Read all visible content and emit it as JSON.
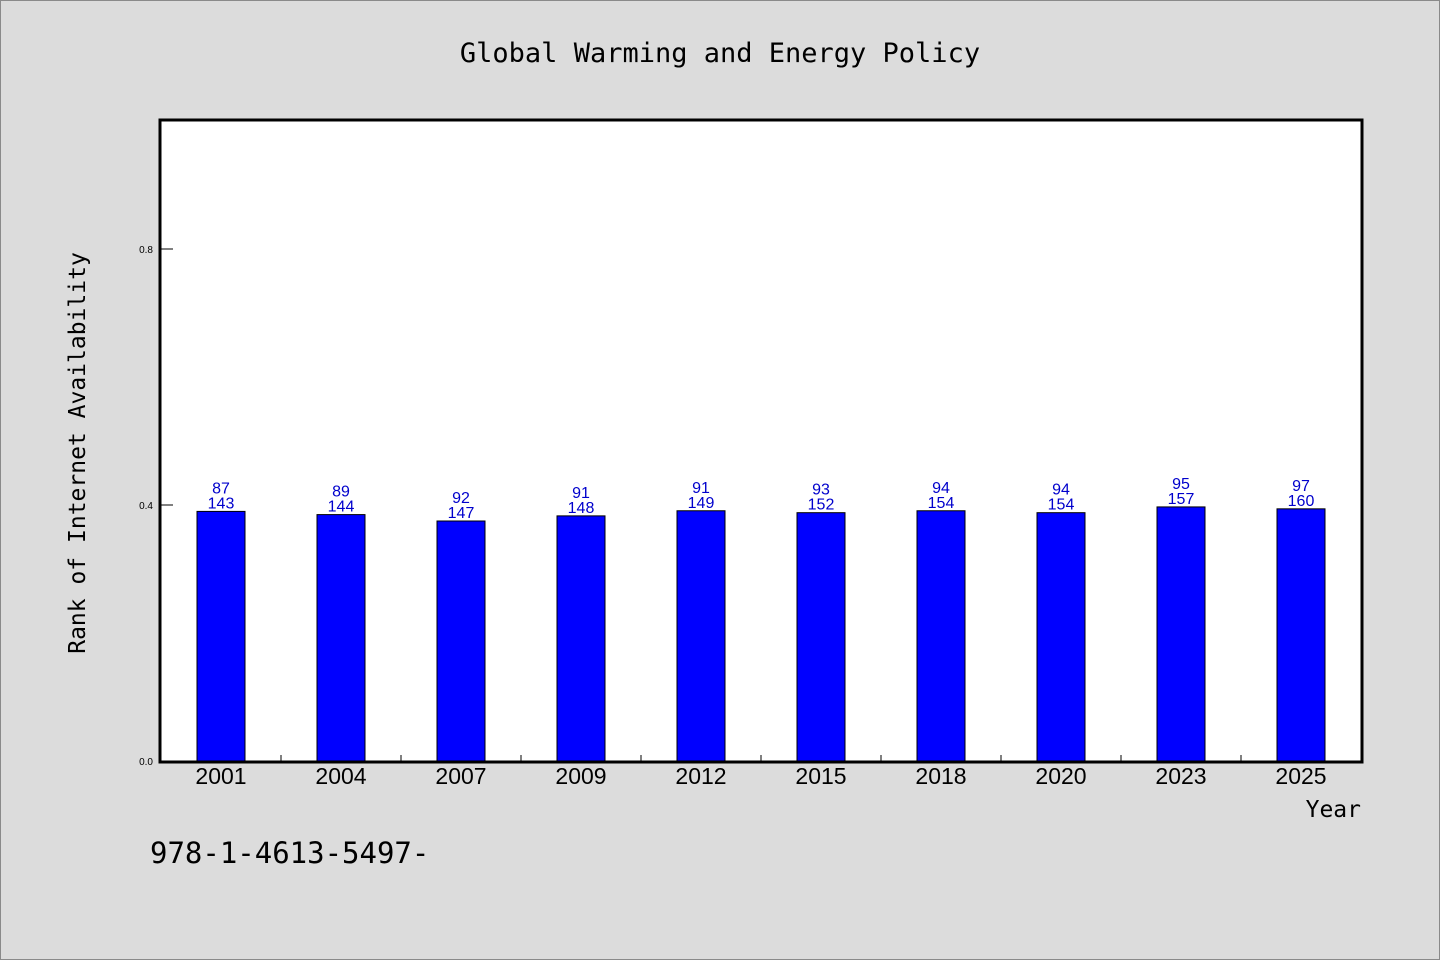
{
  "chart_data": {
    "type": "bar",
    "title": "Global Warming and Energy Policy",
    "xlabel": "Year",
    "ylabel": "Rank of Internet Availability",
    "categories": [
      "2001",
      "2004",
      "2007",
      "2009",
      "2012",
      "2015",
      "2018",
      "2020",
      "2023",
      "2025"
    ],
    "values": [
      0.39,
      0.385,
      0.375,
      0.383,
      0.391,
      0.388,
      0.391,
      0.388,
      0.397,
      0.394
    ],
    "labels_upper": [
      "87",
      "89",
      "92",
      "91",
      "91",
      "93",
      "94",
      "94",
      "95",
      "97"
    ],
    "labels_lower": [
      "143",
      "144",
      "147",
      "148",
      "149",
      "152",
      "154",
      "154",
      "157",
      "160"
    ],
    "ylim": [
      0,
      1.0
    ],
    "yticks": [
      0.0,
      0.4,
      0.8
    ],
    "ytick_labels": [
      "0.0",
      "0.4",
      "0.8"
    ],
    "bar_color": "#0000ff",
    "label_color": "#0000cc",
    "grid": false
  },
  "footnote": "978-1-4613-5497-"
}
